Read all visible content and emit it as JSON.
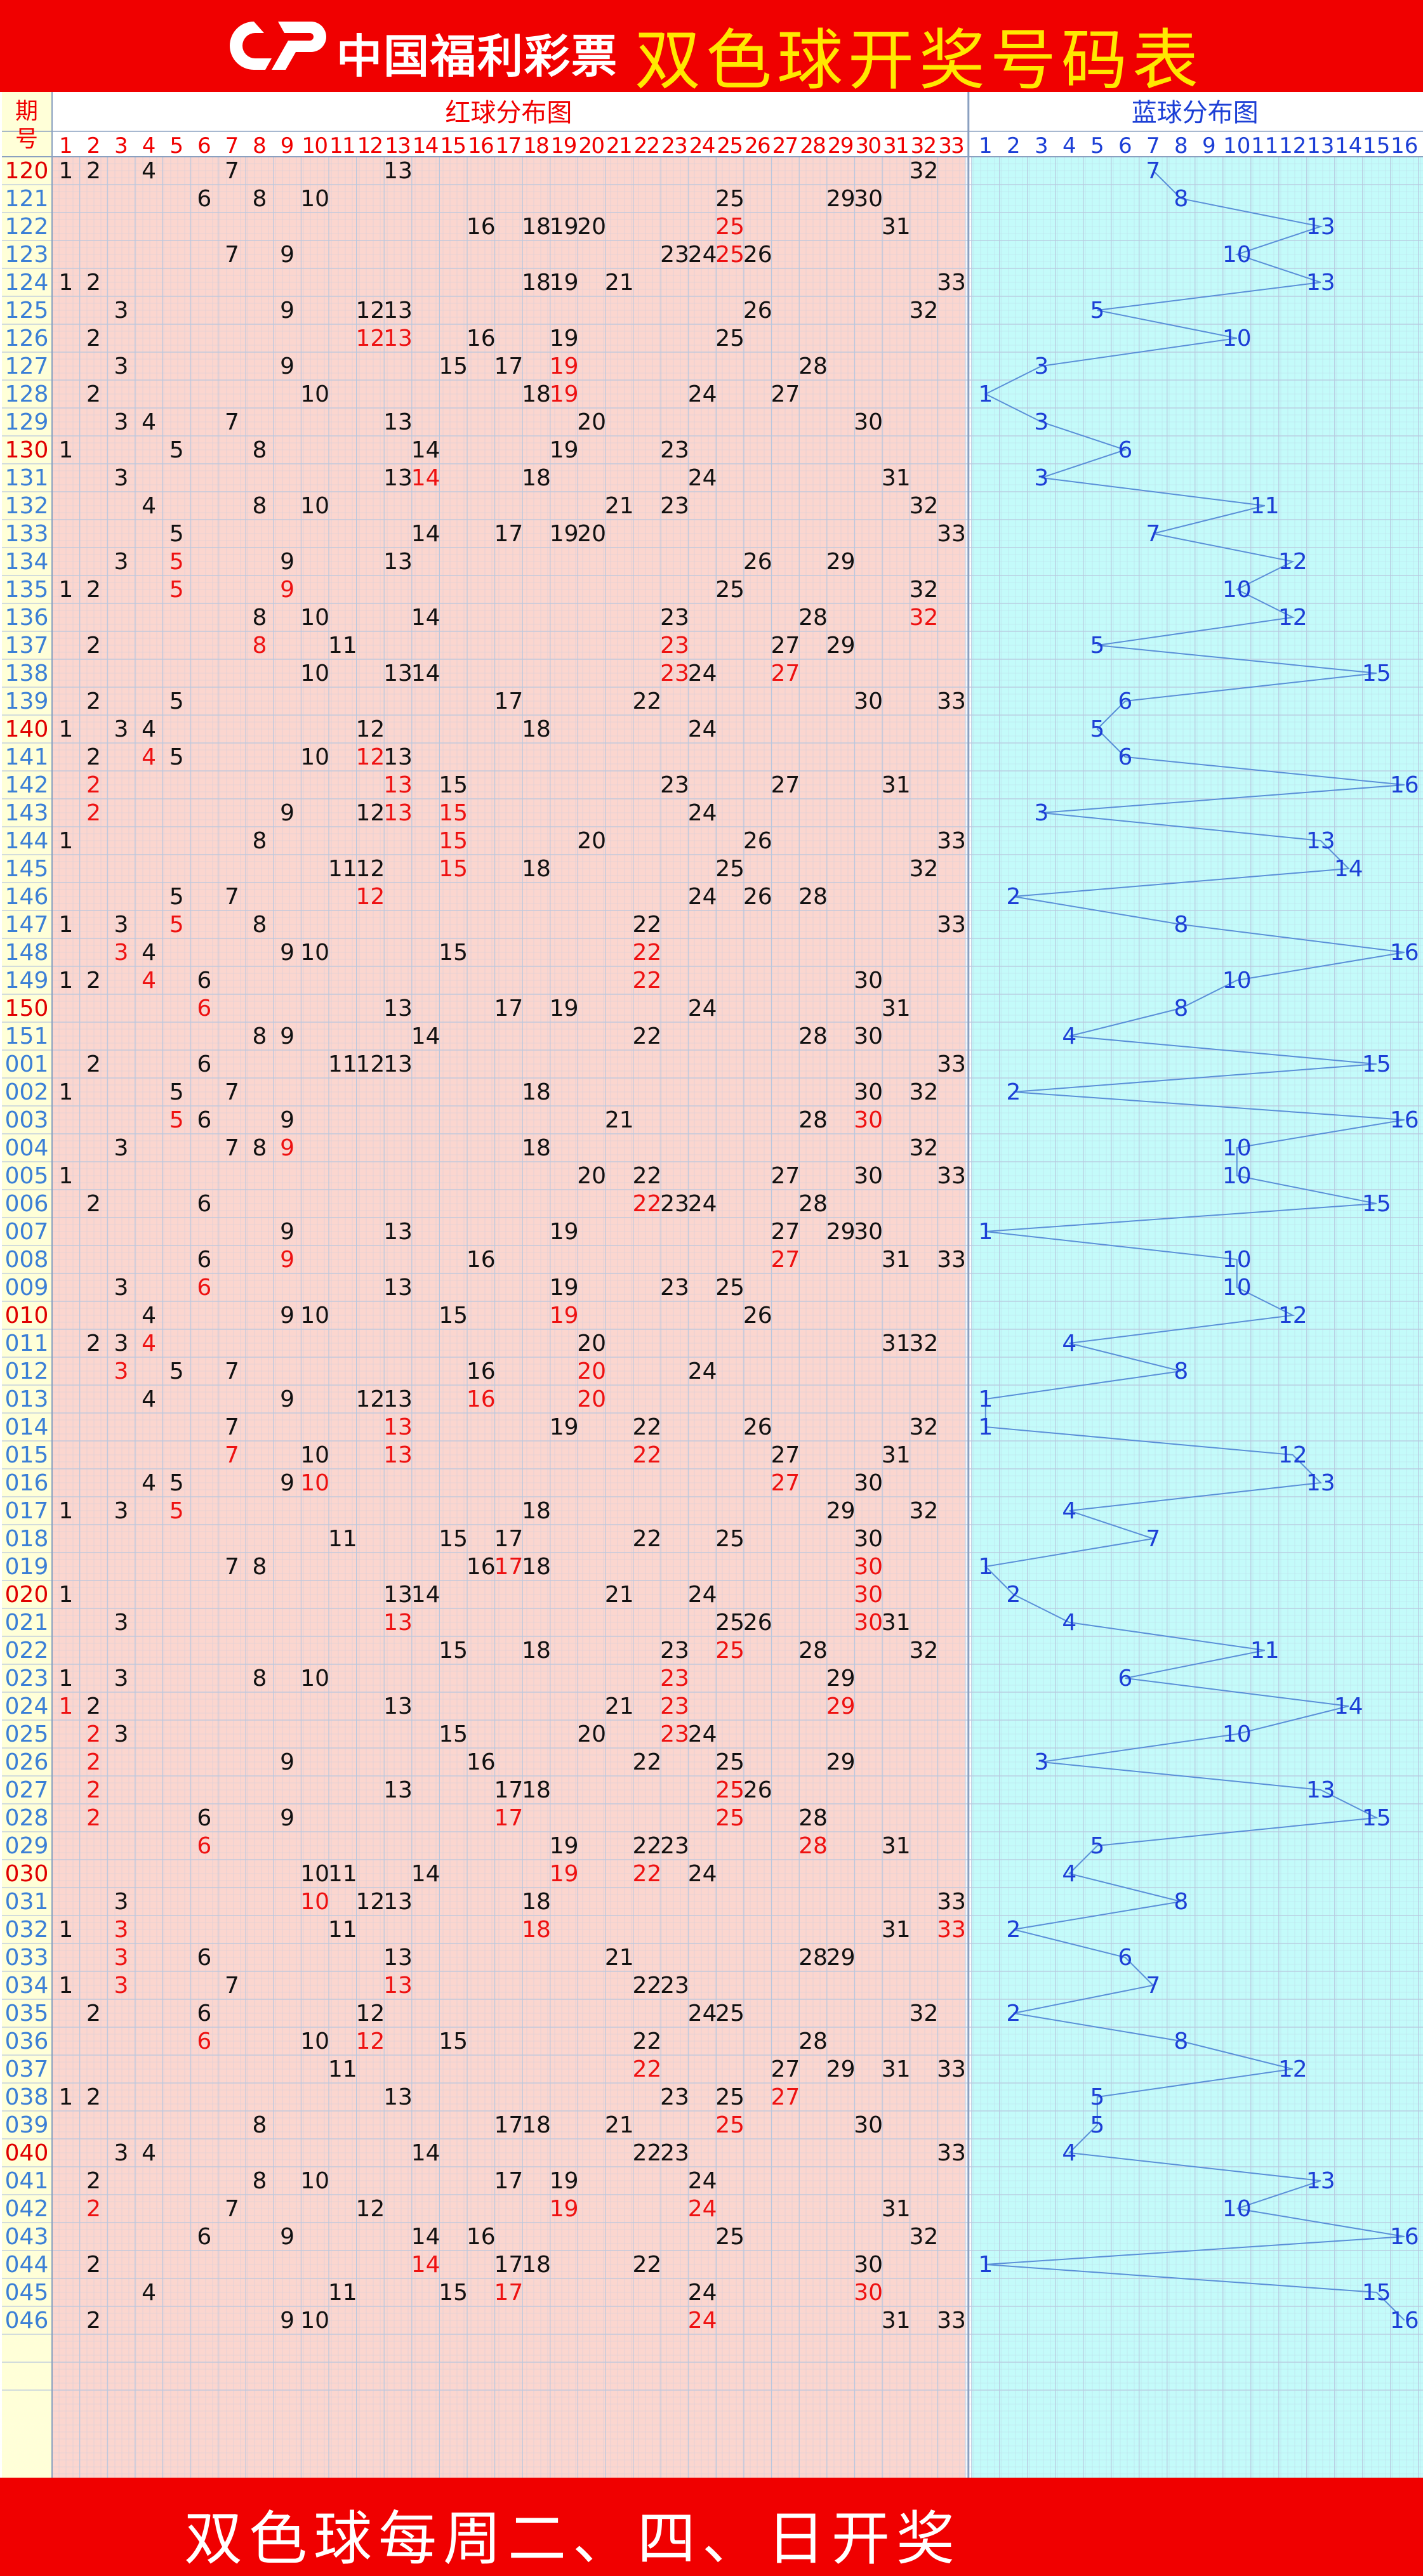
{
  "header": {
    "logo_text": "中国福利彩票",
    "title": "双色球开奖号码表",
    "logo_icon": "cwl-logo-icon"
  },
  "table": {
    "period_header": "期号",
    "red_title": "红球分布图",
    "blue_title": "蓝球分布图",
    "red_numbers": [
      "1",
      "2",
      "3",
      "4",
      "5",
      "6",
      "7",
      "8",
      "9",
      "10",
      "11",
      "12",
      "13",
      "14",
      "15",
      "16",
      "17",
      "18",
      "19",
      "20",
      "21",
      "22",
      "23",
      "24",
      "25",
      "26",
      "27",
      "28",
      "29",
      "30",
      "31",
      "32",
      "33"
    ],
    "blue_numbers": [
      "1",
      "2",
      "3",
      "4",
      "5",
      "6",
      "7",
      "8",
      "9",
      "10",
      "11",
      "12",
      "13",
      "14",
      "15",
      "16"
    ]
  },
  "footer": {
    "text": "双色球每周二、四、日开奖"
  },
  "colors": {
    "red_bg": "#fbd6cf",
    "blue_bg": "#c4fbfa",
    "period_bg": "#ffffd8",
    "grid": "#b8c7de",
    "header_red": "#f00000",
    "period_text": "#3b7fd6",
    "period_highlight": "#e00000",
    "red_ball_text": "#111111",
    "red_hot_text": "#ee1111",
    "blue_ball_text": "#1c3fd6",
    "blue_line": "#5a8fd8"
  },
  "chart_data": {
    "type": "table",
    "title": "双色球开奖号码表",
    "columns_red": 33,
    "columns_blue": 16,
    "draws": [
      {
        "period": "120",
        "red": [
          1,
          2,
          4,
          7,
          13,
          32
        ],
        "blue": 7
      },
      {
        "period": "121",
        "red": [
          6,
          8,
          10,
          25,
          29,
          30
        ],
        "blue": 8
      },
      {
        "period": "122",
        "red": [
          16,
          18,
          19,
          20,
          25,
          31
        ],
        "blue": 13
      },
      {
        "period": "123",
        "red": [
          7,
          9,
          23,
          24,
          25,
          26
        ],
        "blue": 10
      },
      {
        "period": "124",
        "red": [
          1,
          2,
          18,
          19,
          21,
          33
        ],
        "blue": 13
      },
      {
        "period": "125",
        "red": [
          3,
          9,
          12,
          13,
          26,
          32
        ],
        "blue": 5
      },
      {
        "period": "126",
        "red": [
          2,
          12,
          13,
          16,
          19,
          25
        ],
        "blue": 10
      },
      {
        "period": "127",
        "red": [
          3,
          9,
          15,
          17,
          19,
          28
        ],
        "blue": 3
      },
      {
        "period": "128",
        "red": [
          2,
          10,
          18,
          19,
          24,
          27
        ],
        "blue": 1
      },
      {
        "period": "129",
        "red": [
          3,
          4,
          7,
          13,
          20,
          30
        ],
        "blue": 3
      },
      {
        "period": "130",
        "red": [
          1,
          5,
          8,
          14,
          19,
          23
        ],
        "blue": 6
      },
      {
        "period": "131",
        "red": [
          3,
          13,
          14,
          18,
          24,
          31
        ],
        "blue": 3
      },
      {
        "period": "132",
        "red": [
          4,
          8,
          10,
          21,
          23,
          32
        ],
        "blue": 11
      },
      {
        "period": "133",
        "red": [
          5,
          14,
          17,
          19,
          20,
          33
        ],
        "blue": 7
      },
      {
        "period": "134",
        "red": [
          3,
          5,
          9,
          13,
          26,
          29
        ],
        "blue": 12
      },
      {
        "period": "135",
        "red": [
          1,
          2,
          5,
          9,
          25,
          32
        ],
        "blue": 10
      },
      {
        "period": "136",
        "red": [
          8,
          10,
          14,
          23,
          28,
          32
        ],
        "blue": 12
      },
      {
        "period": "137",
        "red": [
          2,
          8,
          11,
          23,
          27,
          29
        ],
        "blue": 5
      },
      {
        "period": "138",
        "red": [
          10,
          13,
          14,
          23,
          24,
          27
        ],
        "blue": 15
      },
      {
        "period": "139",
        "red": [
          2,
          5,
          17,
          22,
          30,
          33
        ],
        "blue": 6
      },
      {
        "period": "140",
        "red": [
          1,
          3,
          4,
          12,
          18,
          24
        ],
        "blue": 5
      },
      {
        "period": "141",
        "red": [
          2,
          4,
          5,
          10,
          12,
          13
        ],
        "blue": 6
      },
      {
        "period": "142",
        "red": [
          2,
          13,
          15,
          23,
          27,
          31
        ],
        "blue": 16
      },
      {
        "period": "143",
        "red": [
          2,
          9,
          12,
          13,
          15,
          24
        ],
        "blue": 3
      },
      {
        "period": "144",
        "red": [
          1,
          8,
          15,
          20,
          26,
          33
        ],
        "blue": 13
      },
      {
        "period": "145",
        "red": [
          11,
          12,
          15,
          18,
          25,
          32
        ],
        "blue": 14
      },
      {
        "period": "146",
        "red": [
          5,
          7,
          12,
          24,
          26,
          28
        ],
        "blue": 2
      },
      {
        "period": "147",
        "red": [
          1,
          3,
          5,
          8,
          22,
          33
        ],
        "blue": 8
      },
      {
        "period": "148",
        "red": [
          3,
          4,
          9,
          10,
          15,
          22
        ],
        "blue": 16
      },
      {
        "period": "149",
        "red": [
          1,
          2,
          4,
          6,
          22,
          30
        ],
        "blue": 10
      },
      {
        "period": "150",
        "red": [
          6,
          13,
          17,
          19,
          24,
          31
        ],
        "blue": 8
      },
      {
        "period": "151",
        "red": [
          8,
          9,
          14,
          22,
          28,
          30
        ],
        "blue": 4
      },
      {
        "period": "001",
        "red": [
          2,
          6,
          11,
          12,
          13,
          33
        ],
        "blue": 15
      },
      {
        "period": "002",
        "red": [
          1,
          5,
          7,
          18,
          30,
          32
        ],
        "blue": 2
      },
      {
        "period": "003",
        "red": [
          5,
          6,
          9,
          21,
          28,
          30
        ],
        "blue": 16
      },
      {
        "period": "004",
        "red": [
          3,
          7,
          8,
          9,
          18,
          32
        ],
        "blue": 10
      },
      {
        "period": "005",
        "red": [
          1,
          20,
          22,
          27,
          30,
          33
        ],
        "blue": 10
      },
      {
        "period": "006",
        "red": [
          2,
          6,
          22,
          23,
          24,
          28
        ],
        "blue": 15
      },
      {
        "period": "007",
        "red": [
          9,
          13,
          19,
          27,
          29,
          30
        ],
        "blue": 1
      },
      {
        "period": "008",
        "red": [
          6,
          9,
          16,
          27,
          31,
          33
        ],
        "blue": 10
      },
      {
        "period": "009",
        "red": [
          3,
          6,
          13,
          19,
          23,
          25
        ],
        "blue": 10
      },
      {
        "period": "010",
        "red": [
          4,
          9,
          10,
          15,
          19,
          26
        ],
        "blue": 12
      },
      {
        "period": "011",
        "red": [
          2,
          3,
          4,
          20,
          31,
          32
        ],
        "blue": 4
      },
      {
        "period": "012",
        "red": [
          3,
          5,
          7,
          16,
          20,
          24
        ],
        "blue": 8
      },
      {
        "period": "013",
        "red": [
          4,
          9,
          12,
          13,
          16,
          20
        ],
        "blue": 1
      },
      {
        "period": "014",
        "red": [
          7,
          13,
          19,
          22,
          26,
          32
        ],
        "blue": 1
      },
      {
        "period": "015",
        "red": [
          7,
          10,
          13,
          22,
          27,
          31
        ],
        "blue": 12
      },
      {
        "period": "016",
        "red": [
          4,
          5,
          9,
          10,
          27,
          30
        ],
        "blue": 13
      },
      {
        "period": "017",
        "red": [
          1,
          3,
          5,
          18,
          29,
          32
        ],
        "blue": 4
      },
      {
        "period": "018",
        "red": [
          11,
          15,
          17,
          22,
          25,
          30
        ],
        "blue": 7
      },
      {
        "period": "019",
        "red": [
          7,
          8,
          16,
          17,
          18,
          30
        ],
        "blue": 1
      },
      {
        "period": "020",
        "red": [
          1,
          13,
          14,
          21,
          24,
          30
        ],
        "blue": 2
      },
      {
        "period": "021",
        "red": [
          3,
          13,
          25,
          26,
          30,
          31
        ],
        "blue": 4
      },
      {
        "period": "022",
        "red": [
          15,
          18,
          23,
          25,
          28,
          32
        ],
        "blue": 11
      },
      {
        "period": "023",
        "red": [
          1,
          3,
          8,
          10,
          23,
          29
        ],
        "blue": 6
      },
      {
        "period": "024",
        "red": [
          1,
          2,
          13,
          21,
          23,
          29
        ],
        "blue": 14
      },
      {
        "period": "025",
        "red": [
          2,
          3,
          15,
          20,
          23,
          24
        ],
        "blue": 10
      },
      {
        "period": "026",
        "red": [
          2,
          9,
          16,
          22,
          25,
          29
        ],
        "blue": 3
      },
      {
        "period": "027",
        "red": [
          2,
          13,
          17,
          18,
          25,
          26
        ],
        "blue": 13
      },
      {
        "period": "028",
        "red": [
          2,
          6,
          9,
          17,
          25,
          28
        ],
        "blue": 15
      },
      {
        "period": "029",
        "red": [
          6,
          19,
          22,
          23,
          28,
          31
        ],
        "blue": 5
      },
      {
        "period": "030",
        "red": [
          10,
          11,
          14,
          19,
          22,
          24
        ],
        "blue": 4
      },
      {
        "period": "031",
        "red": [
          3,
          10,
          12,
          13,
          18,
          33
        ],
        "blue": 8
      },
      {
        "period": "032",
        "red": [
          1,
          3,
          11,
          18,
          31,
          33
        ],
        "blue": 2
      },
      {
        "period": "033",
        "red": [
          3,
          6,
          13,
          21,
          28,
          29
        ],
        "blue": 6
      },
      {
        "period": "034",
        "red": [
          1,
          3,
          7,
          13,
          22,
          23
        ],
        "blue": 7
      },
      {
        "period": "035",
        "red": [
          2,
          6,
          12,
          24,
          25,
          32
        ],
        "blue": 2
      },
      {
        "period": "036",
        "red": [
          6,
          10,
          12,
          15,
          22,
          28
        ],
        "blue": 8
      },
      {
        "period": "037",
        "red": [
          11,
          22,
          27,
          29,
          31,
          33
        ],
        "blue": 12
      },
      {
        "period": "038",
        "red": [
          1,
          2,
          13,
          23,
          25,
          27
        ],
        "blue": 5
      },
      {
        "period": "039",
        "red": [
          8,
          17,
          18,
          21,
          25,
          30
        ],
        "blue": 5
      },
      {
        "period": "040",
        "red": [
          3,
          4,
          14,
          22,
          23,
          33
        ],
        "blue": 4
      },
      {
        "period": "041",
        "red": [
          2,
          8,
          10,
          17,
          19,
          24
        ],
        "blue": 13
      },
      {
        "period": "042",
        "red": [
          2,
          7,
          12,
          19,
          24,
          31
        ],
        "blue": 10
      },
      {
        "period": "043",
        "red": [
          6,
          9,
          14,
          16,
          25,
          32
        ],
        "blue": 16
      },
      {
        "period": "044",
        "red": [
          2,
          14,
          17,
          18,
          22,
          30
        ],
        "blue": 1
      },
      {
        "period": "045",
        "red": [
          4,
          11,
          15,
          17,
          24,
          30
        ],
        "blue": 15
      },
      {
        "period": "046",
        "red": [
          2,
          9,
          10,
          24,
          31,
          33
        ],
        "blue": 16
      }
    ]
  }
}
